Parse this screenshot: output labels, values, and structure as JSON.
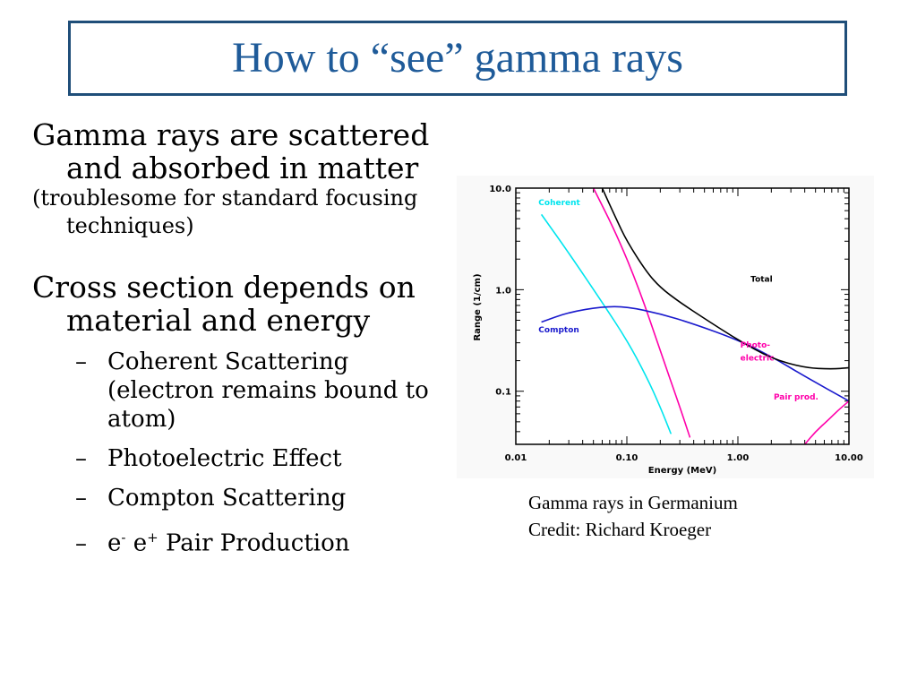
{
  "slide": {
    "title": "How to “see” gamma rays",
    "bullet1_main": "Gamma rays are scattered and absorbed in matter",
    "bullet1_sub": "(troublesome for standard focusing techniques)",
    "bullet2_main": "Cross section depends on material and energy",
    "sub_items": [
      "Coherent Scattering (electron remains bound to atom)",
      "Photoelectric Effect",
      "Compton Scattering",
      "Pair Production"
    ],
    "pair_prefix_e1": "e",
    "pair_sup1": "-",
    "pair_prefix_e2": "e",
    "pair_sup2": "+",
    "dash": "–",
    "caption_line1": "Gamma rays in Germanium",
    "caption_line2": "Credit: Richard Kroeger"
  },
  "colors": {
    "title": "#1f5b99",
    "border": "#1f4e79",
    "coherent": "#00e5ee",
    "photo": "#ff00aa",
    "compton": "#1a1acd",
    "total": "#000000",
    "pair": "#ff00aa"
  },
  "chart_data": {
    "type": "line",
    "xscale": "log",
    "yscale": "log",
    "xlabel": "Energy (MeV)",
    "ylabel": "Range (1/cm)",
    "xlim": [
      0.01,
      10.0
    ],
    "ylim": [
      0.03,
      10.0
    ],
    "xticks": [
      "0.01",
      "0.10",
      "1.00",
      "10.00"
    ],
    "yticks": [
      "10.0",
      "1.0",
      "0.1"
    ],
    "series": [
      {
        "name": "Coherent",
        "color": "#00e5ee",
        "x": [
          0.017,
          0.03,
          0.06,
          0.1,
          0.15,
          0.2,
          0.25
        ],
        "y": [
          5.5,
          2.3,
          0.75,
          0.32,
          0.14,
          0.07,
          0.038
        ]
      },
      {
        "name": "Photo-electric",
        "color": "#ff00aa",
        "x": [
          0.05,
          0.08,
          0.13,
          0.2,
          0.3,
          0.37
        ],
        "y": [
          10.0,
          3.6,
          1.0,
          0.25,
          0.07,
          0.035
        ]
      },
      {
        "name": "Compton",
        "color": "#1a1acd",
        "x": [
          0.017,
          0.03,
          0.06,
          0.1,
          0.2,
          0.4,
          1.0,
          2.0,
          4.0,
          10.0
        ],
        "y": [
          0.48,
          0.6,
          0.68,
          0.68,
          0.58,
          0.46,
          0.32,
          0.22,
          0.14,
          0.08
        ]
      },
      {
        "name": "Total",
        "color": "#000000",
        "x": [
          0.06,
          0.08,
          0.1,
          0.15,
          0.2,
          0.3,
          0.5,
          1.0,
          2.0,
          4.0,
          7.0,
          10.0
        ],
        "y": [
          10.0,
          5.0,
          3.0,
          1.5,
          1.05,
          0.75,
          0.52,
          0.32,
          0.21,
          0.17,
          0.165,
          0.17
        ]
      },
      {
        "name": "Pair prod.",
        "color": "#ff00aa",
        "x": [
          4.0,
          5.0,
          6.5,
          8.0,
          10.0
        ],
        "y": [
          0.03,
          0.04,
          0.052,
          0.065,
          0.08
        ]
      }
    ],
    "annotations": [
      {
        "text": "Coherent",
        "color": "#00e5ee",
        "x": 0.016,
        "y": 6.8
      },
      {
        "text": "Total",
        "color": "#000000",
        "x": 1.3,
        "y": 1.2
      },
      {
        "text": "Compton",
        "color": "#1a1acd",
        "x": 0.016,
        "y": 0.38
      },
      {
        "text": "Photo-",
        "color": "#ff00aa",
        "x": 1.05,
        "y": 0.27
      },
      {
        "text": "electric",
        "color": "#ff00aa",
        "x": 1.05,
        "y": 0.2
      },
      {
        "text": "Pair prod.",
        "color": "#ff00aa",
        "x": 2.1,
        "y": 0.083
      }
    ]
  }
}
